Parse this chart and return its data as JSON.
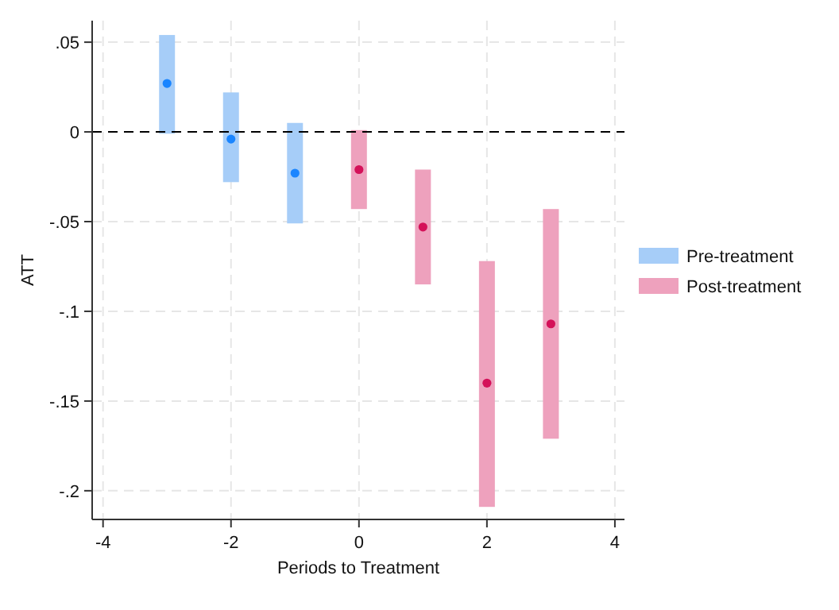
{
  "chart_data": {
    "type": "bar",
    "xlabel": "Periods to Treatment",
    "ylabel": "ATT",
    "xlim": [
      -4.17,
      4.15
    ],
    "xticks": [
      -4,
      -2,
      0,
      2,
      4
    ],
    "ylim": [
      -0.216,
      0.062
    ],
    "yticks": [
      {
        "value": 0.05,
        "label": ".05"
      },
      0,
      {
        "value": -0.05,
        "label": "-.05"
      },
      {
        "value": -0.1,
        "label": "-.1"
      },
      {
        "value": -0.15,
        "label": "-.15"
      },
      {
        "value": -0.2,
        "label": "-.2"
      }
    ],
    "grid": true,
    "legend": "right",
    "marker": "circle",
    "ref_lines": [
      {
        "axis": "y",
        "value": 0,
        "color": "#000000",
        "line_style": "dashed"
      }
    ],
    "series": [
      {
        "name": "Pre-treatment",
        "color": "#a6cdf8",
        "x": [
          -3,
          -2,
          -1
        ],
        "base": [
          -0.001,
          -0.028,
          -0.051
        ],
        "values": [
          0.055,
          0.05,
          0.056
        ]
      },
      {
        "name": "Post-treatment",
        "color": "#eea1bd",
        "x": [
          0,
          1,
          2,
          3
        ],
        "base": [
          -0.043,
          -0.085,
          -0.209,
          -0.171
        ],
        "values": [
          0.044,
          0.064,
          0.137,
          0.128
        ]
      },
      {
        "type": "scatter",
        "color": "#1a85ff",
        "x": [
          -3,
          -2,
          -1
        ],
        "values": [
          0.027,
          -0.004,
          -0.023
        ]
      },
      {
        "type": "scatter",
        "color": "#d41159",
        "x": [
          0,
          1,
          2,
          3
        ],
        "values": [
          -0.021,
          -0.053,
          -0.14,
          -0.107
        ]
      }
    ]
  }
}
